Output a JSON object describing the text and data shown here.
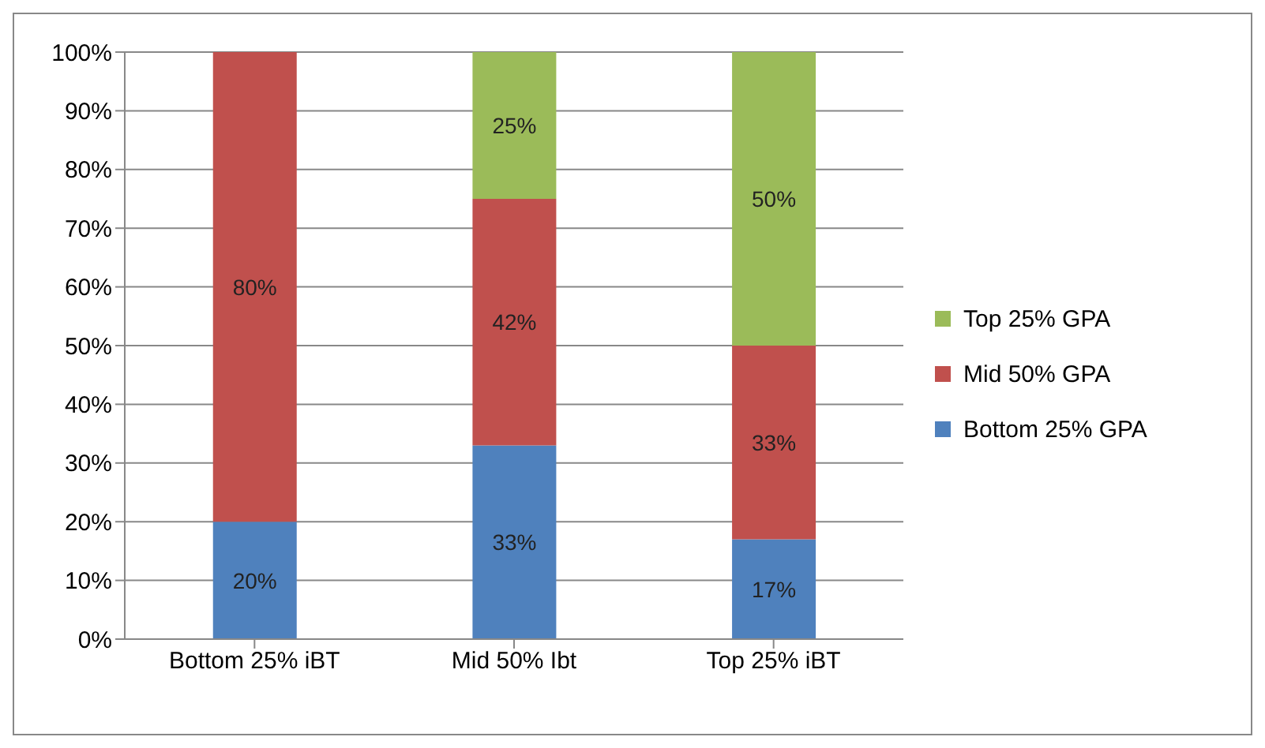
{
  "chart_data": {
    "type": "bar",
    "stacked": true,
    "categories": [
      "Bottom 25% iBT",
      "Mid 50% Ibt",
      "Top 25% iBT"
    ],
    "series": [
      {
        "name": "Bottom 25% GPA",
        "color": "#4f81bd",
        "values": [
          20,
          33,
          17
        ],
        "value_labels": [
          "20%",
          "33%",
          "17%"
        ]
      },
      {
        "name": "Mid 50% GPA",
        "color": "#c0504d",
        "values": [
          80,
          42,
          33
        ],
        "value_labels": [
          "80%",
          "42%",
          "33%"
        ]
      },
      {
        "name": "Top 25% GPA",
        "color": "#9bbb59",
        "values": [
          null,
          25,
          50
        ],
        "value_labels": [
          null,
          "25%",
          "50%"
        ]
      }
    ],
    "ylim": [
      0,
      100
    ],
    "yticks": [
      {
        "value": 0,
        "label": "0%"
      },
      {
        "value": 10,
        "label": "10%"
      },
      {
        "value": 20,
        "label": "20%"
      },
      {
        "value": 30,
        "label": "30%"
      },
      {
        "value": 40,
        "label": "40%"
      },
      {
        "value": 50,
        "label": "50%"
      },
      {
        "value": 60,
        "label": "60%"
      },
      {
        "value": 70,
        "label": "70%"
      },
      {
        "value": 80,
        "label": "80%"
      },
      {
        "value": 90,
        "label": "90%"
      },
      {
        "value": 100,
        "label": "100%"
      }
    ],
    "grid": "y",
    "legend": "right"
  }
}
